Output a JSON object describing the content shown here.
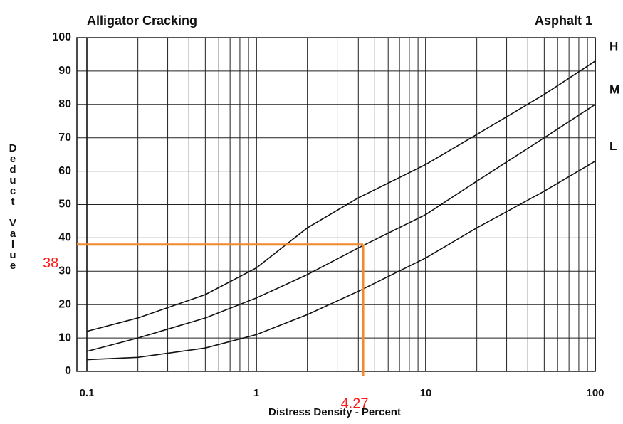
{
  "chart_data": {
    "type": "line",
    "title": "Alligator Cracking",
    "subtitle": "Asphalt 1",
    "xlabel": "Distress Density - Percent",
    "ylabel": "Deduct Value",
    "xscale": "log",
    "grid": true,
    "x": [
      0.1,
      0.2,
      0.5,
      1,
      2,
      4,
      10,
      20,
      50,
      100
    ],
    "series": [
      {
        "name": "H",
        "color": "#111111",
        "values": [
          12,
          16,
          23,
          31,
          43,
          52,
          62,
          71,
          83,
          93
        ]
      },
      {
        "name": "M",
        "color": "#111111",
        "values": [
          6,
          10,
          16,
          22,
          29,
          37,
          47,
          57,
          70,
          80
        ]
      },
      {
        "name": "L",
        "color": "#111111",
        "values": [
          3.5,
          4.2,
          7,
          11,
          17,
          24,
          34,
          43,
          54,
          63
        ]
      }
    ],
    "xlim": [
      0.1,
      100
    ],
    "xticks": [
      0.1,
      1,
      10,
      100
    ],
    "ylim": [
      0,
      100
    ],
    "yticks": [
      0,
      10,
      20,
      30,
      40,
      50,
      60,
      70,
      80,
      90,
      100
    ],
    "reference": {
      "x": 4.27,
      "y": 38,
      "color": "#f08a2c",
      "x_label": "4.27",
      "y_label": "38",
      "label_color": "#ff1a1a"
    }
  }
}
